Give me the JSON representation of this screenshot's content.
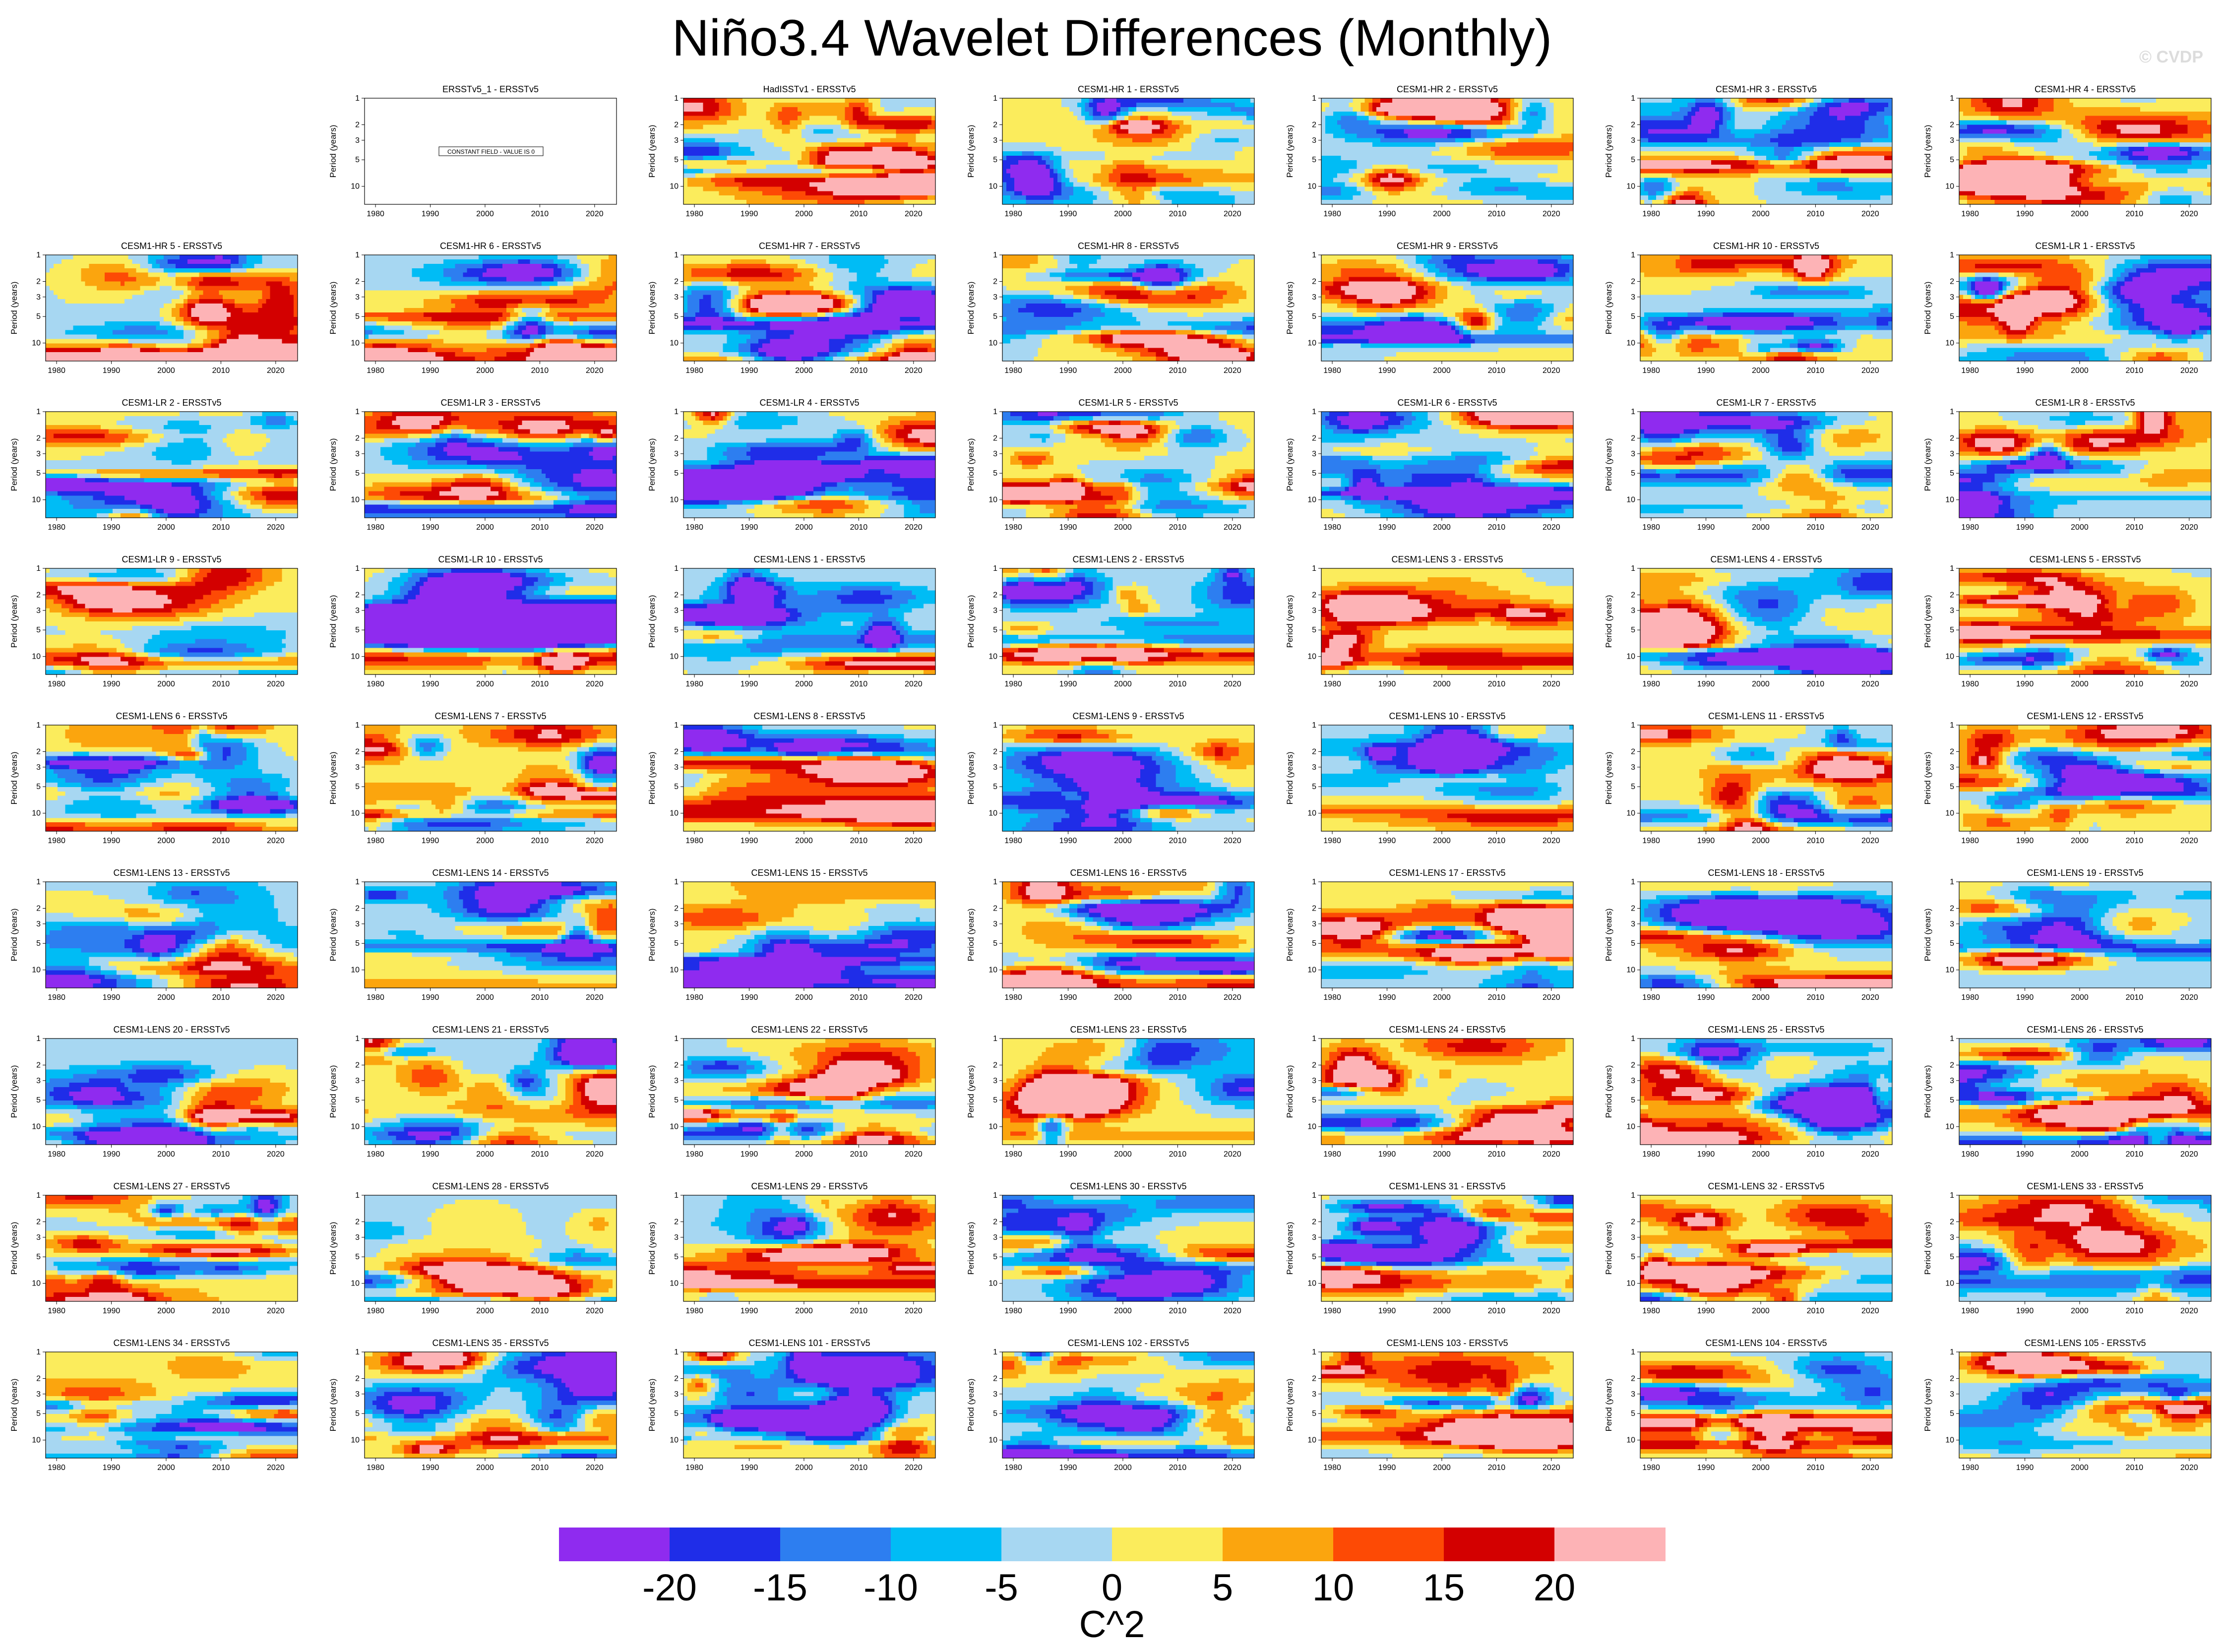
{
  "title": "Niño3.4 Wavelet Differences (Monthly)",
  "watermark": "© CVDP",
  "colorbar": {
    "units": "C^2",
    "labels": [
      "-20",
      "-15",
      "-10",
      "-5",
      "0",
      "5",
      "10",
      "15",
      "20"
    ],
    "colors": [
      "#8f2bef",
      "#1f2de8",
      "#2d7ef0",
      "#00bcf5",
      "#a7d7f2",
      "#fbec5c",
      "#fba50e",
      "#fd4a05",
      "#d30000",
      "#fdb3b6"
    ]
  },
  "chart_data": {
    "type": "heatmap",
    "panel_type": "filled-contour wavelet power difference",
    "xlabel": "",
    "ylabel": "Period (years)",
    "x_ticks": [
      "1980",
      "1990",
      "2000",
      "2010",
      "2020"
    ],
    "y_ticks": [
      "1",
      "2",
      "3",
      "5",
      "10"
    ],
    "xlim": [
      1978,
      2024
    ],
    "ylim": [
      1,
      16
    ],
    "levels": [
      -20,
      -15,
      -10,
      -5,
      0,
      5,
      10,
      15,
      20
    ],
    "units": "C^2",
    "constant_field_note": "CONSTANT FIELD - VALUE IS 0",
    "panels": [
      {
        "title": "ERSSTv5_1 - ERSSTv5",
        "constant": true
      },
      {
        "title": "HadISSTv1 - ERSSTv5"
      },
      {
        "title": "CESM1-HR 1 - ERSSTv5"
      },
      {
        "title": "CESM1-HR 2 - ERSSTv5"
      },
      {
        "title": "CESM1-HR 3 - ERSSTv5"
      },
      {
        "title": "CESM1-HR 4 - ERSSTv5"
      },
      {
        "title": "CESM1-HR 5 - ERSSTv5"
      },
      {
        "title": "CESM1-HR 6 - ERSSTv5"
      },
      {
        "title": "CESM1-HR 7 - ERSSTv5"
      },
      {
        "title": "CESM1-HR 8 - ERSSTv5"
      },
      {
        "title": "CESM1-HR 9 - ERSSTv5"
      },
      {
        "title": "CESM1-HR 10 - ERSSTv5"
      },
      {
        "title": "CESM1-LR 1 - ERSSTv5"
      },
      {
        "title": "CESM1-LR 2 - ERSSTv5"
      },
      {
        "title": "CESM1-LR 3 - ERSSTv5"
      },
      {
        "title": "CESM1-LR 4 - ERSSTv5"
      },
      {
        "title": "CESM1-LR 5 - ERSSTv5"
      },
      {
        "title": "CESM1-LR 6 - ERSSTv5"
      },
      {
        "title": "CESM1-LR 7 - ERSSTv5"
      },
      {
        "title": "CESM1-LR 8 - ERSSTv5"
      },
      {
        "title": "CESM1-LR 9 - ERSSTv5"
      },
      {
        "title": "CESM1-LR 10 - ERSSTv5"
      },
      {
        "title": "CESM1-LENS 1 - ERSSTv5"
      },
      {
        "title": "CESM1-LENS 2 - ERSSTv5"
      },
      {
        "title": "CESM1-LENS 3 - ERSSTv5"
      },
      {
        "title": "CESM1-LENS 4 - ERSSTv5"
      },
      {
        "title": "CESM1-LENS 5 - ERSSTv5"
      },
      {
        "title": "CESM1-LENS 6 - ERSSTv5"
      },
      {
        "title": "CESM1-LENS 7 - ERSSTv5"
      },
      {
        "title": "CESM1-LENS 8 - ERSSTv5"
      },
      {
        "title": "CESM1-LENS 9 - ERSSTv5"
      },
      {
        "title": "CESM1-LENS 10 - ERSSTv5"
      },
      {
        "title": "CESM1-LENS 11 - ERSSTv5"
      },
      {
        "title": "CESM1-LENS 12 - ERSSTv5"
      },
      {
        "title": "CESM1-LENS 13 - ERSSTv5"
      },
      {
        "title": "CESM1-LENS 14 - ERSSTv5"
      },
      {
        "title": "CESM1-LENS 15 - ERSSTv5"
      },
      {
        "title": "CESM1-LENS 16 - ERSSTv5"
      },
      {
        "title": "CESM1-LENS 17 - ERSSTv5"
      },
      {
        "title": "CESM1-LENS 18 - ERSSTv5"
      },
      {
        "title": "CESM1-LENS 19 - ERSSTv5"
      },
      {
        "title": "CESM1-LENS 20 - ERSSTv5"
      },
      {
        "title": "CESM1-LENS 21 - ERSSTv5"
      },
      {
        "title": "CESM1-LENS 22 - ERSSTv5"
      },
      {
        "title": "CESM1-LENS 23 - ERSSTv5"
      },
      {
        "title": "CESM1-LENS 24 - ERSSTv5"
      },
      {
        "title": "CESM1-LENS 25 - ERSSTv5"
      },
      {
        "title": "CESM1-LENS 26 - ERSSTv5"
      },
      {
        "title": "CESM1-LENS 27 - ERSSTv5"
      },
      {
        "title": "CESM1-LENS 28 - ERSSTv5"
      },
      {
        "title": "CESM1-LENS 29 - ERSSTv5"
      },
      {
        "title": "CESM1-LENS 30 - ERSSTv5"
      },
      {
        "title": "CESM1-LENS 31 - ERSSTv5"
      },
      {
        "title": "CESM1-LENS 32 - ERSSTv5"
      },
      {
        "title": "CESM1-LENS 33 - ERSSTv5"
      },
      {
        "title": "CESM1-LENS 34 - ERSSTv5"
      },
      {
        "title": "CESM1-LENS 35 - ERSSTv5"
      },
      {
        "title": "CESM1-LENS 101 - ERSSTv5"
      },
      {
        "title": "CESM1-LENS 102 - ERSSTv5"
      },
      {
        "title": "CESM1-LENS 103 - ERSSTv5"
      },
      {
        "title": "CESM1-LENS 104 - ERSSTv5"
      },
      {
        "title": "CESM1-LENS 105 - ERSSTv5"
      }
    ]
  }
}
